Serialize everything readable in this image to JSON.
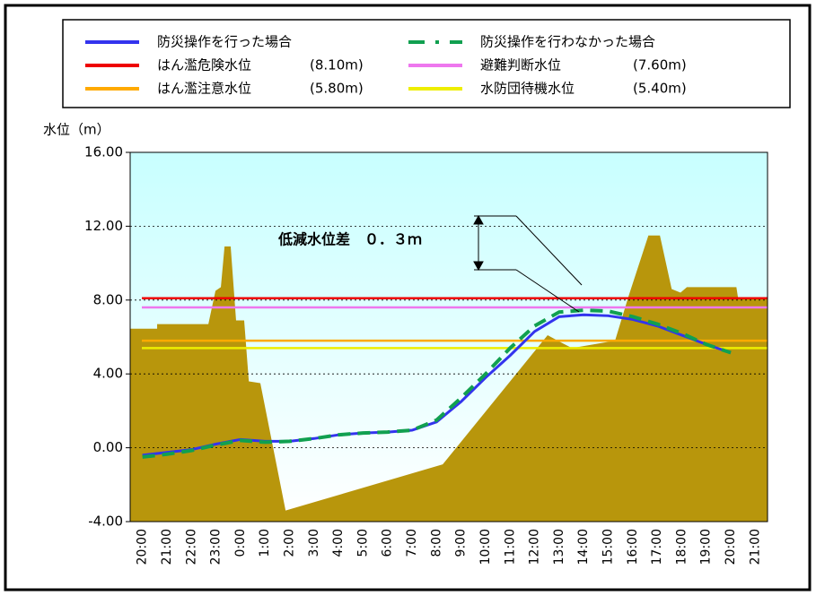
{
  "chart_data": {
    "type": "line",
    "y_label": "水位（m）",
    "categories": [
      "20:00",
      "21:00",
      "22:00",
      "23:00",
      "0:00",
      "1:00",
      "2:00",
      "3:00",
      "4:00",
      "5:00",
      "6:00",
      "7:00",
      "8:00",
      "9:00",
      "10:00",
      "11:00",
      "12:00",
      "13:00",
      "14:00",
      "15:00",
      "16:00",
      "17:00",
      "18:00",
      "19:00",
      "20:00",
      "21:00"
    ],
    "series": [
      {
        "name": "防災操作を行った場合",
        "color": "#3333ee",
        "dash": false,
        "values": [
          -0.4,
          -0.25,
          -0.1,
          0.2,
          0.45,
          0.35,
          0.35,
          0.5,
          0.7,
          0.8,
          0.85,
          0.95,
          1.4,
          2.5,
          3.8,
          5.0,
          6.3,
          7.1,
          7.2,
          7.15,
          6.95,
          6.6,
          6.1,
          5.6,
          5.15,
          null
        ]
      },
      {
        "name": "防災操作を行わなかった場合",
        "color": "#11a050",
        "dash": true,
        "values": [
          -0.5,
          -0.35,
          -0.15,
          0.15,
          0.4,
          0.3,
          0.35,
          0.5,
          0.7,
          0.8,
          0.85,
          0.95,
          1.5,
          2.7,
          4.0,
          5.4,
          6.6,
          7.35,
          7.45,
          7.4,
          7.1,
          6.7,
          6.2,
          5.6,
          5.15,
          null
        ]
      }
    ],
    "thresholds": [
      {
        "name": "はん濫危険水位",
        "label": "(8.10m)",
        "value": 8.1,
        "color": "#ee0000"
      },
      {
        "name": "避難判断水位",
        "label": "(7.60m)",
        "value": 7.6,
        "color": "#ee77ee"
      },
      {
        "name": "はん濫注意水位",
        "label": "(5.80m)",
        "value": 5.8,
        "color": "#ffaa00"
      },
      {
        "name": "水防団待機水位",
        "label": "(5.40m)",
        "value": 5.4,
        "color": "#eeee00"
      }
    ],
    "area": {
      "color": "#b8960c",
      "x": [
        0,
        0,
        1.1,
        1.1,
        3.19,
        3.48,
        3.7,
        3.85,
        4.1,
        4.32,
        4.65,
        4.84,
        5.31,
        6.34,
        12.75,
        17.03,
        17.58,
        18.02,
        19.78,
        20.33,
        21.14,
        21.61,
        22.09,
        22.45,
        22.71,
        24.73,
        24.8,
        26,
        26
      ],
      "y": [
        -4,
        6.45,
        6.45,
        6.7,
        6.7,
        8.5,
        8.7,
        10.9,
        10.9,
        6.9,
        6.9,
        3.6,
        3.5,
        -3.4,
        -0.9,
        6.1,
        5.7,
        5.4,
        5.8,
        8.2,
        11.5,
        11.5,
        8.6,
        8.4,
        8.7,
        8.7,
        8.1,
        8.1,
        -4
      ]
    },
    "annotation": "低減水位差　０．３ｍ",
    "ylim": [
      -4,
      16
    ],
    "yticks": [
      {
        "value": -4,
        "label": "-4.00"
      },
      {
        "value": 0,
        "label": "0.00"
      },
      {
        "value": 4,
        "label": "4.00"
      },
      {
        "value": 8,
        "label": "8.00"
      },
      {
        "value": 12,
        "label": "12.00"
      },
      {
        "value": 16,
        "label": "16.00"
      }
    ],
    "grid": true
  }
}
